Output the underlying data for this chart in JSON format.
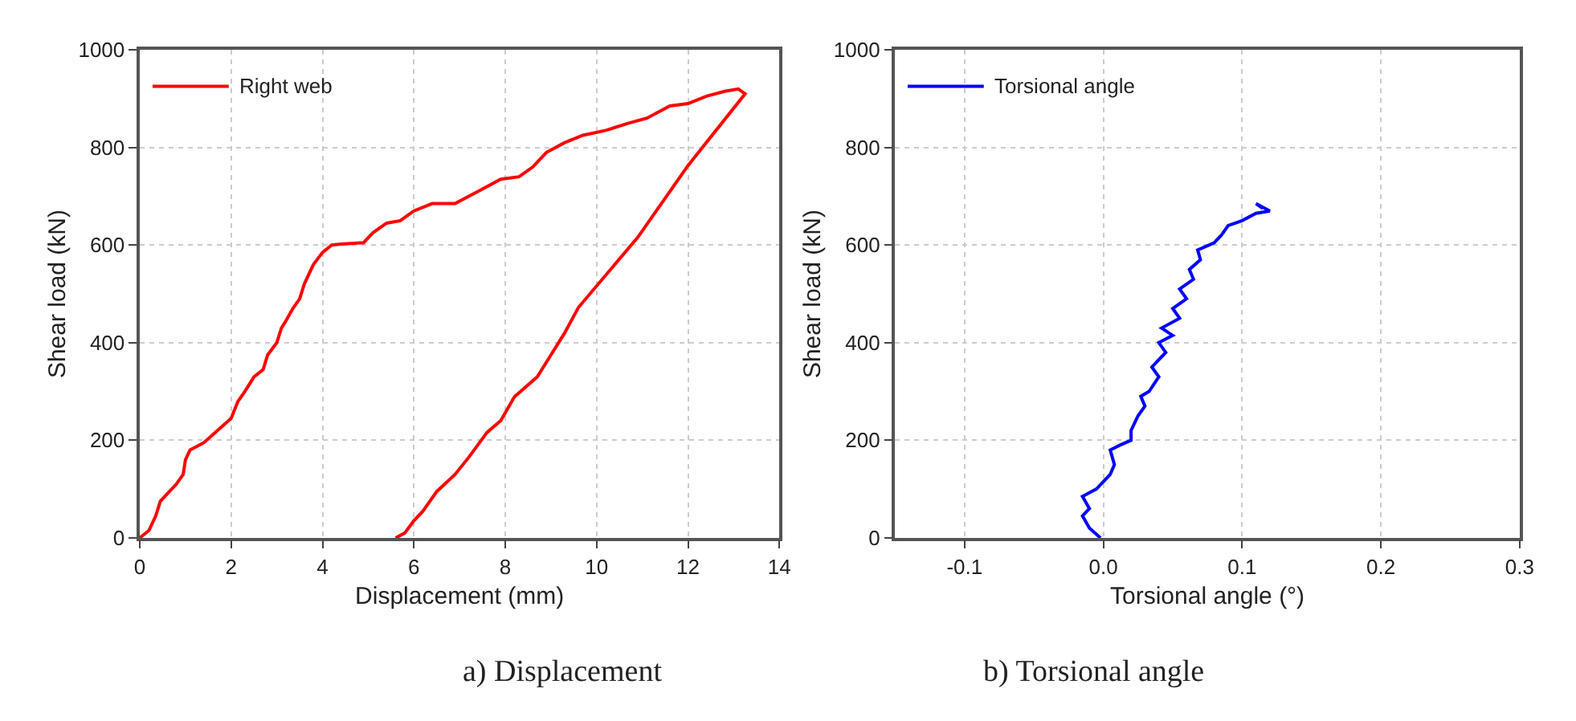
{
  "chart_data": [
    {
      "type": "line",
      "xlabel": "Displacement (mm)",
      "ylabel": "Shear load (kN)",
      "xlim": [
        0,
        14
      ],
      "xticks": [
        0,
        2,
        4,
        6,
        8,
        10,
        12,
        14
      ],
      "ylim": [
        0,
        1000
      ],
      "yticks": [
        0,
        200,
        400,
        600,
        800,
        1000
      ],
      "grid": true,
      "legend": "top left",
      "line_style": "solid",
      "annotations": [
        "a) Displacement"
      ],
      "series": [
        {
          "name": "Right web",
          "color": "#ff0000",
          "x": [
            0,
            0.2,
            0.35,
            0.45,
            0.6,
            0.8,
            0.95,
            1.0,
            1.1,
            1.4,
            1.7,
            2.0,
            2.15,
            2.3,
            2.5,
            2.7,
            2.8,
            3.0,
            3.1,
            3.2,
            3.35,
            3.5,
            3.6,
            3.7,
            3.8,
            4.0,
            4.2,
            4.4,
            4.9,
            5.1,
            5.4,
            5.7,
            6.0,
            6.4,
            6.9,
            7.4,
            7.9,
            8.3,
            8.6,
            8.9,
            9.3,
            9.7,
            10.2,
            10.7,
            11.1,
            11.6,
            12.0,
            12.4,
            12.8,
            13.1,
            13.25,
            12.0,
            10.9,
            9.6,
            9.3,
            9.0,
            8.7,
            8.2,
            7.9,
            7.6,
            7.2,
            6.9,
            6.5,
            6.2,
            6.0,
            5.8,
            5.6
          ],
          "values": [
            0,
            15,
            45,
            75,
            90,
            110,
            130,
            160,
            180,
            195,
            220,
            245,
            280,
            300,
            330,
            345,
            375,
            400,
            430,
            445,
            470,
            490,
            520,
            540,
            560,
            585,
            600,
            602,
            605,
            625,
            645,
            650,
            670,
            685,
            685,
            710,
            735,
            740,
            760,
            790,
            810,
            825,
            835,
            850,
            860,
            885,
            890,
            905,
            915,
            920,
            910,
            763,
            616,
            472,
            420,
            375,
            330,
            289,
            240,
            216,
            165,
            130,
            95,
            55,
            35,
            10,
            0
          ]
        }
      ]
    },
    {
      "type": "line",
      "xlabel": "Torsional angle (°)",
      "ylabel": "Shear load (kN)",
      "xlim": [
        -0.15,
        0.3
      ],
      "xticks": [
        -0.1,
        {
          "value": 0,
          "label": "0.0"
        },
        0.1,
        0.2,
        0.3
      ],
      "ylim": [
        0,
        1000
      ],
      "yticks": [
        0,
        200,
        400,
        600,
        800,
        1000
      ],
      "grid": true,
      "legend": "top left",
      "line_style": "solid",
      "annotations": [
        "b) Torsional angle"
      ],
      "series": [
        {
          "name": "Torsional angle",
          "color": "#0000ff",
          "x": [
            -0.002,
            -0.01,
            -0.015,
            -0.01,
            -0.015,
            -0.005,
            0.005,
            0.008,
            0.005,
            0.012,
            0.02,
            0.02,
            0.025,
            0.03,
            0.027,
            0.033,
            0.04,
            0.035,
            0.045,
            0.04,
            0.05,
            0.042,
            0.055,
            0.05,
            0.06,
            0.055,
            0.065,
            0.062,
            0.07,
            0.068,
            0.08,
            0.085,
            0.09,
            0.1,
            0.11,
            0.12,
            0.11,
            0.115
          ],
          "values": [
            0,
            20,
            45,
            60,
            85,
            100,
            130,
            150,
            180,
            190,
            200,
            220,
            250,
            270,
            290,
            300,
            330,
            350,
            380,
            400,
            415,
            430,
            450,
            470,
            490,
            510,
            530,
            550,
            570,
            590,
            605,
            620,
            640,
            650,
            665,
            670,
            685,
            675
          ]
        }
      ]
    }
  ]
}
